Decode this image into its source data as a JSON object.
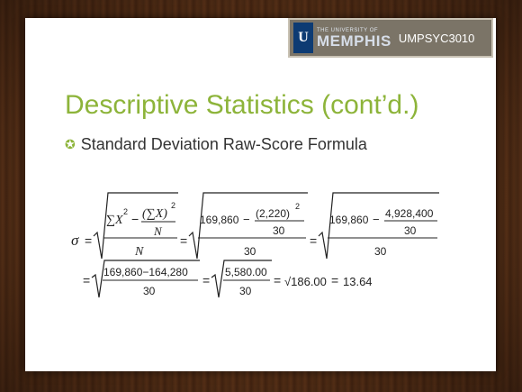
{
  "header": {
    "logo_small": "THE UNIVERSITY OF",
    "logo_big": "MEMPHIS",
    "logo_mark": "U",
    "course": "UMPSYC3010"
  },
  "slide": {
    "title": "Descriptive Statistics (cont’d.)",
    "bullet": "Standard Deviation Raw-Score Formula"
  },
  "formula": {
    "sigma": "σ",
    "sum_x2": "∑X",
    "sq": "2",
    "sum_x": "(∑X)",
    "N": "N",
    "val1": "169,860",
    "val2": "(2,220)",
    "n30": "30",
    "val3": "4,928,400",
    "row2a": "169,860−164,280",
    "row2b": "5,580.00",
    "row2c": "√186.00",
    "result": "13.64",
    "minus": "−",
    "eq": "="
  },
  "colors": {
    "title_green": "#8db43a",
    "badge_bg": "#7b7467",
    "logo_blue": "#0d3b73"
  }
}
